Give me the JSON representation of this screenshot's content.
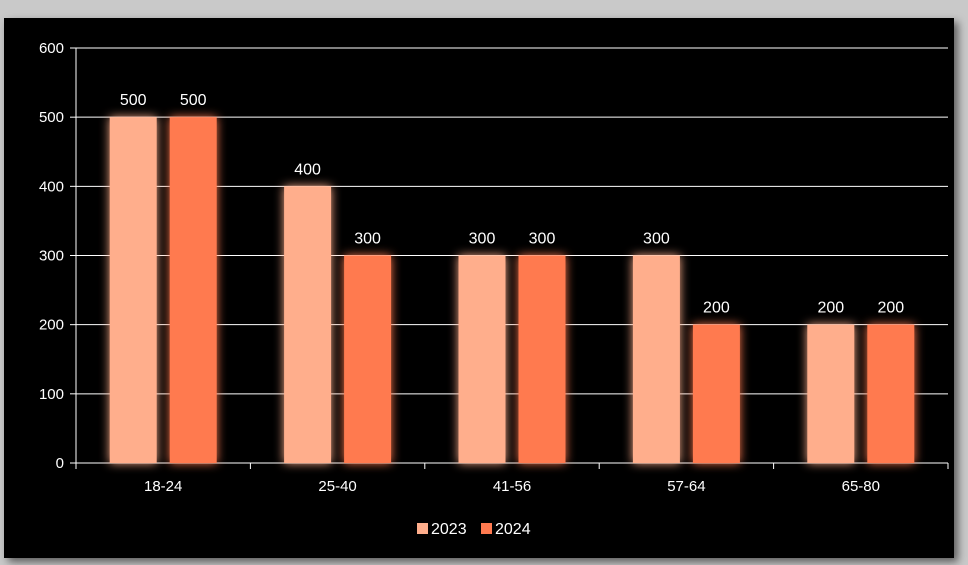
{
  "chart_data": {
    "type": "bar",
    "categories": [
      "18-24",
      "25-40",
      "41-56",
      "57-64",
      "65-80"
    ],
    "series": [
      {
        "name": "2023",
        "values": [
          500,
          400,
          300,
          300,
          200
        ],
        "color": "#FFAE8C"
      },
      {
        "name": "2024",
        "values": [
          500,
          300,
          300,
          200,
          200
        ],
        "color": "#FF7A50"
      }
    ],
    "ylim": [
      0,
      600
    ],
    "yticks": [
      0,
      100,
      200,
      300,
      400,
      500,
      600
    ],
    "grid": true,
    "legend_position": "bottom",
    "data_labels": true,
    "background": "#000000",
    "text_color": "#FFFFFF"
  }
}
